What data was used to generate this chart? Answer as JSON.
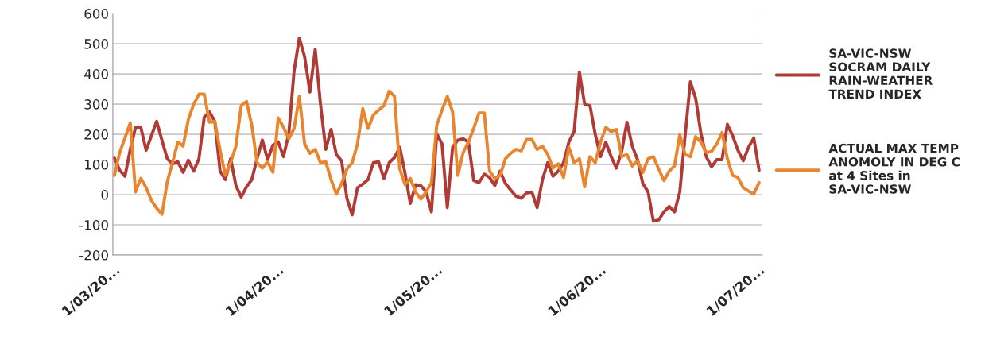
{
  "chart_data": {
    "type": "line",
    "categories": [
      "1/03/20...",
      null,
      null,
      null,
      null,
      null,
      null,
      null,
      null,
      null,
      null,
      null,
      null,
      null,
      null,
      null,
      null,
      null,
      null,
      null,
      null,
      null,
      null,
      null,
      null,
      null,
      null,
      null,
      null,
      null,
      null,
      "1/04/20...",
      null,
      null,
      null,
      null,
      null,
      null,
      null,
      null,
      null,
      null,
      null,
      null,
      null,
      null,
      null,
      null,
      null,
      null,
      null,
      null,
      null,
      null,
      null,
      null,
      null,
      null,
      null,
      null,
      null,
      "1/05/20...",
      null,
      null,
      null,
      null,
      null,
      null,
      null,
      null,
      null,
      null,
      null,
      null,
      null,
      null,
      null,
      null,
      null,
      null,
      null,
      null,
      null,
      null,
      null,
      null,
      null,
      null,
      null,
      null,
      null,
      null,
      "1/06/20...",
      null,
      null,
      null,
      null,
      null,
      null,
      null,
      null,
      null,
      null,
      null,
      null,
      null,
      null,
      null,
      null,
      null,
      null,
      null,
      null,
      null,
      null,
      null,
      null,
      null,
      null,
      null,
      null,
      null,
      "1/07/20..."
    ],
    "ylim": [
      -200,
      600
    ],
    "yticks": [
      -200,
      -100,
      0,
      100,
      200,
      300,
      400,
      500,
      600
    ],
    "grid": "y",
    "legend": "right",
    "line_style": "solid",
    "marker": "none",
    "series": [
      {
        "name": "SA-VIC-NSW SOCRAM DAILY RAIN-WEATHER TREND INDEX",
        "color": "#b03a36",
        "values": [
          121,
          81,
          61,
          150,
          223,
          223,
          147,
          195,
          243,
          180,
          119,
          102,
          109,
          74,
          114,
          78,
          119,
          257,
          274,
          243,
          78,
          50,
          119,
          30,
          -8,
          26,
          50,
          119,
          181,
          116,
          164,
          175,
          126,
          202,
          409,
          519,
          457,
          340,
          481,
          300,
          150,
          216,
          133,
          112,
          -12,
          -67,
          23,
          35,
          50,
          106,
          109,
          54,
          106,
          123,
          157,
          71,
          -29,
          33,
          30,
          9,
          -57,
          202,
          168,
          -43,
          157,
          181,
          185,
          174,
          47,
          40,
          68,
          57,
          30,
          78,
          37,
          15,
          -5,
          -12,
          6,
          9,
          -43,
          50,
          106,
          61,
          78,
          106,
          174,
          209,
          406,
          299,
          295,
          200,
          126,
          174,
          126,
          88,
          143,
          240,
          161,
          116,
          37,
          9,
          -88,
          -84,
          -57,
          -39,
          -57,
          9,
          195,
          374,
          319,
          202,
          126,
          92,
          116,
          116,
          233,
          195,
          147,
          112,
          157,
          188,
          81
        ]
      },
      {
        "name": "ACTUAL MAX TEMP ANOMOLY IN DEG C at 4 Sites in SA-VIC-NSW",
        "color": "#e8852e",
        "values": [
          64,
          140,
          188,
          238,
          9,
          54,
          23,
          -19,
          -45,
          -65,
          43,
          106,
          174,
          161,
          250,
          299,
          333,
          333,
          240,
          243,
          147,
          64,
          106,
          161,
          295,
          309,
          230,
          106,
          88,
          109,
          74,
          254,
          223,
          185,
          219,
          326,
          168,
          137,
          150,
          106,
          109,
          50,
          2,
          37,
          85,
          106,
          168,
          285,
          219,
          264,
          280,
          295,
          343,
          326,
          85,
          33,
          54,
          9,
          -15,
          9,
          40,
          230,
          280,
          326,
          274,
          64,
          140,
          174,
          220,
          271,
          271,
          78,
          54,
          64,
          119,
          137,
          150,
          145,
          183,
          183,
          150,
          161,
          133,
          88,
          102,
          57,
          157,
          106,
          119,
          26,
          126,
          106,
          174,
          223,
          209,
          216,
          126,
          133,
          95,
          112,
          74,
          119,
          126,
          85,
          47,
          78,
          95,
          199,
          133,
          126,
          192,
          174,
          140,
          143,
          168,
          206,
          119,
          64,
          57,
          23,
          12,
          2,
          40
        ]
      }
    ]
  }
}
